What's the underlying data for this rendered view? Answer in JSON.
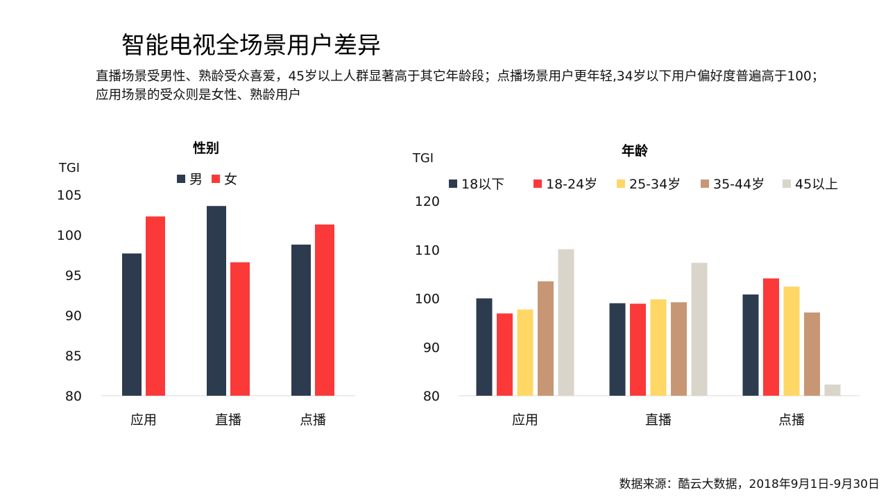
{
  "page": {
    "title": "智能电视全场景用户差异",
    "subtitle": "直播场景受男性、熟龄受众喜爱，45岁以上人群显著高于其它年龄段；点播场景用户更年轻,34岁以下用户偏好度普遍高于100；应用场景的受众则是女性、熟龄用户",
    "source": "数据来源：酷云大数据，2018年9月1日-9月30日"
  },
  "chart_data": [
    {
      "type": "bar",
      "title": "性别",
      "ylabel": "TGI",
      "categories": [
        "应用",
        "直播",
        "点播"
      ],
      "ylim": [
        80,
        105
      ],
      "yticks": [
        80,
        85,
        90,
        95,
        100,
        105
      ],
      "legend_position": "top",
      "grid": false,
      "series": [
        {
          "name": "男",
          "color": "#2d3b4e",
          "values": [
            97.7,
            103.6,
            98.8
          ]
        },
        {
          "name": "女",
          "color": "#fb3939",
          "values": [
            102.3,
            96.6,
            101.3
          ]
        }
      ]
    },
    {
      "type": "bar",
      "title": "年龄",
      "ylabel": "TGI",
      "categories": [
        "应用",
        "直播",
        "点播"
      ],
      "ylim": [
        80,
        120
      ],
      "yticks": [
        80,
        90,
        100,
        110,
        120
      ],
      "legend_position": "top",
      "grid": false,
      "series": [
        {
          "name": "18以下",
          "color": "#2d3b4e",
          "values": [
            100,
            99,
            100.8
          ]
        },
        {
          "name": "18-24岁",
          "color": "#fb3939",
          "values": [
            96.9,
            98.9,
            104.1
          ]
        },
        {
          "name": "25-34岁",
          "color": "#fed764",
          "values": [
            97.7,
            99.8,
            102.4
          ]
        },
        {
          "name": "35-44岁",
          "color": "#c79775",
          "values": [
            103.5,
            99.2,
            97.1
          ]
        },
        {
          "name": "45以上",
          "color": "#d9d5cb",
          "values": [
            110.1,
            107.3,
            82.3
          ]
        }
      ]
    }
  ]
}
